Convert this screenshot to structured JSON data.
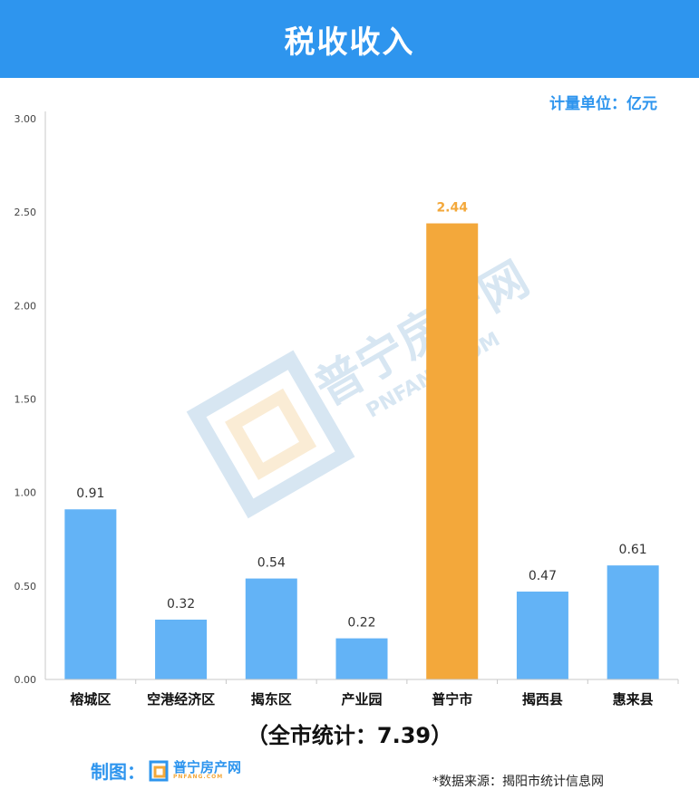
{
  "header": {
    "title": "税收收入"
  },
  "unit_label": "计量单位：亿元",
  "total_label": "（全市统计：7.39）",
  "credit": {
    "label": "制图：",
    "logo_cn": "普宁房产网",
    "logo_en": "PNFANG.COM"
  },
  "source": "*数据来源：揭阳市统计信息网",
  "watermark": {
    "cn": "普宁房产网",
    "en": "PNFANG.COM"
  },
  "colors": {
    "header": "#2e95ee",
    "bar": "#63b3f6",
    "highlight": "#f3a83b"
  },
  "chart_data": {
    "type": "bar",
    "title": "税收收入",
    "xlabel": "",
    "ylabel": "",
    "categories": [
      "榕城区",
      "空港经济区",
      "揭东区",
      "产业园",
      "普宁市",
      "揭西县",
      "惠来县"
    ],
    "values": [
      0.91,
      0.32,
      0.54,
      0.22,
      2.44,
      0.47,
      0.61
    ],
    "value_labels": [
      "0.91",
      "0.32",
      "0.54",
      "0.22",
      "2.44",
      "0.47",
      "0.61"
    ],
    "highlight": "普宁市",
    "ylim": [
      0,
      3
    ],
    "yticks": [
      "0.00",
      "0.50",
      "1.00",
      "1.50",
      "2.00",
      "2.50",
      "3.00"
    ],
    "ytick_values": [
      0,
      0.5,
      1,
      1.5,
      2,
      2.5,
      3
    ],
    "grid": false,
    "legend": "none"
  }
}
